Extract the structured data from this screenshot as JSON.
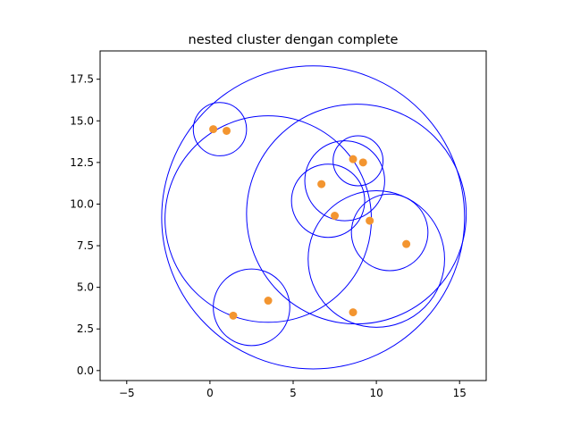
{
  "chart_data": {
    "type": "scatter",
    "title": "nested cluster dengan complete",
    "xlabel": "",
    "ylabel": "",
    "xlim": [
      -6.6,
      16.6
    ],
    "ylim": [
      -0.6,
      19.2
    ],
    "xticks": [
      -5,
      0,
      5,
      10,
      15
    ],
    "yticks": [
      0.0,
      2.5,
      5.0,
      7.5,
      10.0,
      12.5,
      15.0,
      17.5
    ],
    "xtick_labels": [
      "−5",
      "0",
      "5",
      "10",
      "15"
    ],
    "ytick_labels": [
      "0.0",
      "2.5",
      "5.0",
      "7.5",
      "10.0",
      "12.5",
      "15.0",
      "17.5"
    ],
    "grid": false,
    "legend": "none",
    "point_color": "#f39530",
    "circle_color": "#0000ff",
    "points": [
      {
        "x": 0.2,
        "y": 14.5
      },
      {
        "x": 1.0,
        "y": 14.4
      },
      {
        "x": 1.4,
        "y": 3.3
      },
      {
        "x": 3.5,
        "y": 4.2
      },
      {
        "x": 6.7,
        "y": 11.2
      },
      {
        "x": 7.5,
        "y": 9.3
      },
      {
        "x": 8.6,
        "y": 12.7
      },
      {
        "x": 9.2,
        "y": 12.5
      },
      {
        "x": 9.6,
        "y": 9.0
      },
      {
        "x": 11.8,
        "y": 7.6
      },
      {
        "x": 8.6,
        "y": 3.5
      }
    ],
    "circles": [
      {
        "cx": 6.2,
        "cy": 9.2,
        "r": 9.1
      },
      {
        "cx": 3.5,
        "cy": 9.1,
        "r": 6.2
      },
      {
        "cx": 8.8,
        "cy": 9.4,
        "r": 6.6
      },
      {
        "cx": 10.0,
        "cy": 6.7,
        "r": 4.1
      },
      {
        "cx": 8.1,
        "cy": 11.4,
        "r": 2.4
      },
      {
        "cx": 10.8,
        "cy": 8.3,
        "r": 2.3
      },
      {
        "cx": 7.1,
        "cy": 10.2,
        "r": 2.2
      },
      {
        "cx": 8.9,
        "cy": 12.6,
        "r": 1.5
      },
      {
        "cx": 0.6,
        "cy": 14.5,
        "r": 1.6
      },
      {
        "cx": 2.5,
        "cy": 3.8,
        "r": 2.3
      }
    ]
  }
}
